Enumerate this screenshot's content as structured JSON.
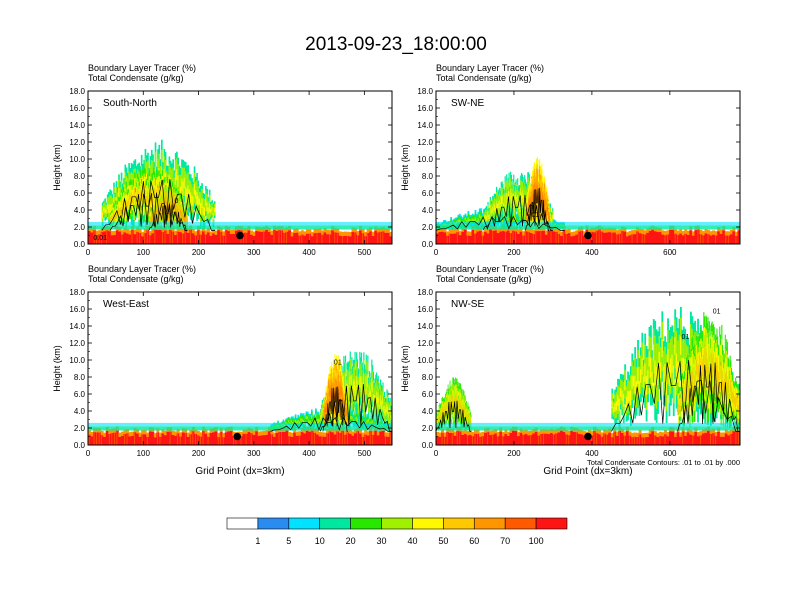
{
  "figure_title": "2013-09-23_18:00:00",
  "chart_data": [
    {
      "type": "heatmap",
      "panel_label": "South-North",
      "subtitle_lines": [
        "Boundary Layer Tracer   (%)",
        "Total Condensate   (g/kg)"
      ],
      "ylabel": "Height (km)",
      "xlabel": "",
      "xlim": [
        0,
        550
      ],
      "ylim": [
        0,
        18
      ],
      "xticks": [
        0,
        100,
        200,
        300,
        400,
        500
      ],
      "yticks": [
        0,
        2,
        4,
        6,
        8,
        10,
        12,
        14,
        16,
        18
      ],
      "ytick_labels": [
        "0.0",
        "2.0",
        "4.0",
        "6.0",
        "8.0",
        "10.0",
        "12.0",
        "14.0",
        "16.0",
        "18.0"
      ],
      "marker": {
        "x": 275,
        "y": 1.0
      },
      "contour_labels": [
        {
          "x": 22,
          "y": 0.5,
          "text": "0.01"
        },
        {
          "x": 160,
          "y": 4.8,
          "text": "0"
        }
      ],
      "cloud_regions": [
        {
          "x0": 25,
          "x1": 230,
          "top": 12.3,
          "level": 30
        },
        {
          "x0": 40,
          "x1": 180,
          "top": 9.5,
          "level": 40
        },
        {
          "x0": 110,
          "x1": 180,
          "top": 7.0,
          "level": 50
        }
      ]
    },
    {
      "type": "heatmap",
      "panel_label": "SW-NE",
      "subtitle_lines": [
        "Boundary Layer Tracer   (%)",
        "Total Condensate   (g/kg)"
      ],
      "ylabel": "Height (km)",
      "xlabel": "",
      "xlim": [
        0,
        780
      ],
      "ylim": [
        0,
        18
      ],
      "xticks": [
        0,
        200,
        400,
        600
      ],
      "yticks": [
        0,
        2,
        4,
        6,
        8,
        10,
        12,
        14,
        16,
        18
      ],
      "ytick_labels": [
        "0.0",
        "2.0",
        "4.0",
        "6.0",
        "8.0",
        "10.0",
        "12.0",
        "14.0",
        "16.0",
        "18.0"
      ],
      "marker": {
        "x": 390,
        "y": 1.0
      },
      "contour_labels": [
        {
          "x": 255,
          "y": 3.2,
          "text": "01"
        }
      ],
      "cloud_regions": [
        {
          "x0": 0,
          "x1": 330,
          "top": 4.5,
          "level": 20
        },
        {
          "x0": 120,
          "x1": 300,
          "top": 9.0,
          "level": 30
        },
        {
          "x0": 230,
          "x1": 290,
          "top": 10.5,
          "level": 60
        }
      ]
    },
    {
      "type": "heatmap",
      "panel_label": "West-East",
      "subtitle_lines": [
        "Boundary Layer Tracer   (%)",
        "Total Condensate   (g/kg)"
      ],
      "ylabel": "Height (km)",
      "xlabel": "Grid Point (dx=3km)",
      "xlim": [
        0,
        550
      ],
      "ylim": [
        0,
        18
      ],
      "xticks": [
        0,
        100,
        200,
        300,
        400,
        500
      ],
      "yticks": [
        0,
        2,
        4,
        6,
        8,
        10,
        12,
        14,
        16,
        18
      ],
      "ytick_labels": [
        "0.0",
        "2.0",
        "4.0",
        "6.0",
        "8.0",
        "10.0",
        "12.0",
        "14.0",
        "16.0",
        "18.0"
      ],
      "marker": {
        "x": 270,
        "y": 1.0
      },
      "contour_labels": [
        {
          "x": 452,
          "y": 9.5,
          "text": "01"
        }
      ],
      "cloud_regions": [
        {
          "x0": 330,
          "x1": 550,
          "top": 4.5,
          "level": 20
        },
        {
          "x0": 420,
          "x1": 550,
          "top": 11.5,
          "level": 30
        },
        {
          "x0": 425,
          "x1": 470,
          "top": 11.0,
          "level": 60
        }
      ]
    },
    {
      "type": "heatmap",
      "panel_label": "NW-SE",
      "subtitle_lines": [
        "Boundary Layer Tracer   (%)",
        "Total Condensate   (g/kg)"
      ],
      "ylabel": "Height (km)",
      "xlabel": "Grid Point (dx=3km)",
      "footnote": "Total Condensate Contours: .01 to .01 by .000",
      "xlim": [
        0,
        780
      ],
      "ylim": [
        0,
        18
      ],
      "xticks": [
        0,
        200,
        400,
        600
      ],
      "yticks": [
        0,
        2,
        4,
        6,
        8,
        10,
        12,
        14,
        16,
        18
      ],
      "ytick_labels": [
        "0.0",
        "2.0",
        "4.0",
        "6.0",
        "8.0",
        "10.0",
        "12.0",
        "14.0",
        "16.0",
        "18.0"
      ],
      "marker": {
        "x": 390,
        "y": 1.0
      },
      "contour_labels": [
        {
          "x": 720,
          "y": 15.5,
          "text": "01"
        },
        {
          "x": 640,
          "y": 12.5,
          "text": "01"
        }
      ],
      "cloud_regions": [
        {
          "x0": 0,
          "x1": 90,
          "top": 8.0,
          "level": 40
        },
        {
          "x0": 450,
          "x1": 780,
          "top": 16.5,
          "level": 30
        },
        {
          "x0": 620,
          "x1": 780,
          "top": 16.0,
          "level": 40
        }
      ]
    }
  ],
  "colorbar": {
    "colors": [
      "#ffffff",
      "#2a8cf0",
      "#00e2ff",
      "#00e8a0",
      "#28e800",
      "#a0f000",
      "#fff800",
      "#ffc800",
      "#ff9600",
      "#ff5a00",
      "#ff1414"
    ],
    "labels": [
      "1",
      "5",
      "10",
      "20",
      "30",
      "40",
      "50",
      "60",
      "70",
      "100"
    ]
  }
}
